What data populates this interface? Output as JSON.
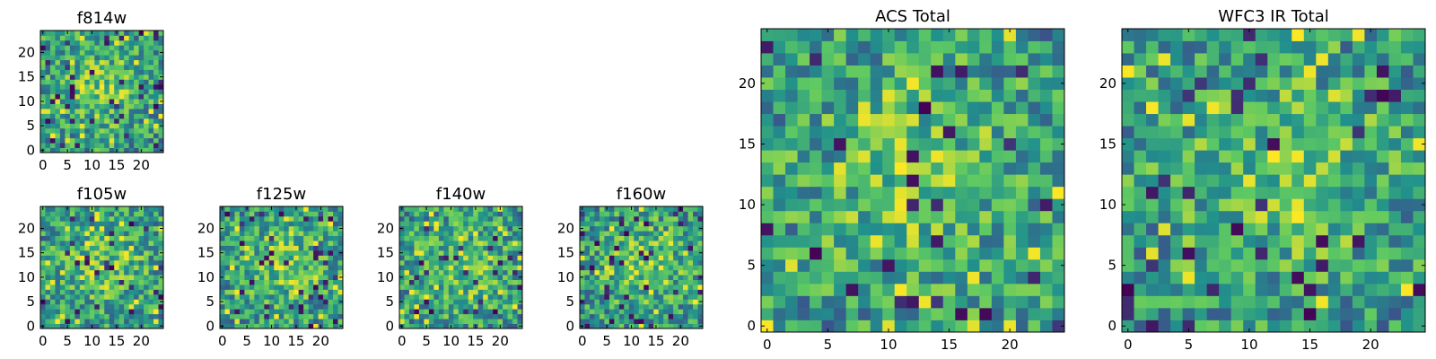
{
  "chart_data": [
    {
      "id": "f814w",
      "type": "heatmap",
      "title": "f814w",
      "grid_size": 25,
      "colormap": "viridis",
      "seed": 814,
      "xticks": [
        "0",
        "5",
        "10",
        "15",
        "20"
      ],
      "yticks": [
        "0",
        "5",
        "10",
        "15",
        "20"
      ],
      "xlim": [
        0,
        25
      ],
      "ylim": [
        0,
        25
      ]
    },
    {
      "id": "f105w",
      "type": "heatmap",
      "title": "f105w",
      "grid_size": 25,
      "colormap": "viridis",
      "seed": 105,
      "xticks": [
        "0",
        "5",
        "10",
        "15",
        "20"
      ],
      "yticks": [
        "0",
        "5",
        "10",
        "15",
        "20"
      ],
      "xlim": [
        0,
        25
      ],
      "ylim": [
        0,
        25
      ]
    },
    {
      "id": "f125w",
      "type": "heatmap",
      "title": "f125w",
      "grid_size": 25,
      "colormap": "viridis",
      "seed": 125,
      "xticks": [
        "0",
        "5",
        "10",
        "15",
        "20"
      ],
      "yticks": [
        "0",
        "5",
        "10",
        "15",
        "20"
      ],
      "xlim": [
        0,
        25
      ],
      "ylim": [
        0,
        25
      ]
    },
    {
      "id": "f140w",
      "type": "heatmap",
      "title": "f140w",
      "grid_size": 25,
      "colormap": "viridis",
      "seed": 140,
      "xticks": [
        "0",
        "5",
        "10",
        "15",
        "20"
      ],
      "yticks": [
        "0",
        "5",
        "10",
        "15",
        "20"
      ],
      "xlim": [
        0,
        25
      ],
      "ylim": [
        0,
        25
      ]
    },
    {
      "id": "f160w",
      "type": "heatmap",
      "title": "f160w",
      "grid_size": 25,
      "colormap": "viridis",
      "seed": 160,
      "xticks": [
        "0",
        "5",
        "10",
        "15",
        "20"
      ],
      "yticks": [
        "0",
        "5",
        "10",
        "15",
        "20"
      ],
      "xlim": [
        0,
        25
      ],
      "ylim": [
        0,
        25
      ]
    },
    {
      "id": "acs-total",
      "type": "heatmap",
      "title": "ACS Total",
      "grid_size": 25,
      "colormap": "viridis",
      "seed": 901,
      "xticks": [
        "0",
        "5",
        "10",
        "15",
        "20"
      ],
      "yticks": [
        "0",
        "5",
        "10",
        "15",
        "20"
      ],
      "xlim": [
        0,
        25
      ],
      "ylim": [
        0,
        25
      ]
    },
    {
      "id": "wfc3-ir-total",
      "type": "heatmap",
      "title": "WFC3 IR Total",
      "grid_size": 25,
      "colormap": "viridis",
      "seed": 902,
      "xticks": [
        "0",
        "5",
        "10",
        "15",
        "20"
      ],
      "yticks": [
        "0",
        "5",
        "10",
        "15",
        "20"
      ],
      "xlim": [
        0,
        25
      ],
      "ylim": [
        0,
        25
      ]
    }
  ],
  "colormap_stops": [
    "#440154",
    "#3b528b",
    "#21918c",
    "#5ec962",
    "#fde725"
  ]
}
